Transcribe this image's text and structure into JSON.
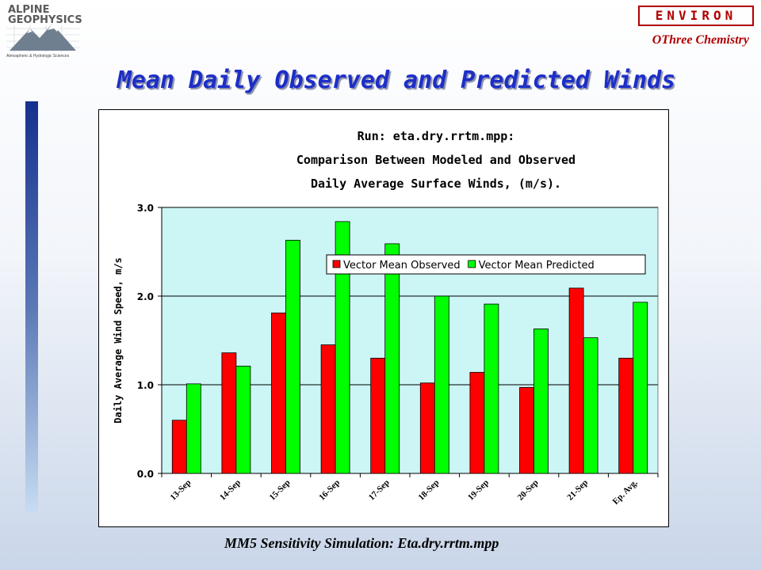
{
  "header": {
    "logo_line1": "ALPINE",
    "logo_line2": "GEOPHYSICS",
    "logo_tagline": "Atmospheric & Hydrologic Sciences",
    "environ_label": "ENVIRON",
    "subtitle": "OThree Chemistry",
    "title": "Mean Daily Observed and Predicted Winds"
  },
  "footer": {
    "caption": "MM5 Sensitivity Simulation:  Eta.dry.rrtm.mpp"
  },
  "colors": {
    "title": "#1d2ec8",
    "observed": "#ff0000",
    "predicted": "#00ff00",
    "plot_bg": "#ccf5f5",
    "accent": "#b00000"
  },
  "chart_data": {
    "type": "bar",
    "title_lines": [
      "Run: eta.dry.rrtm.mpp:",
      "Comparison Between Modeled and Observed",
      "Daily Average Surface Winds, (m/s)."
    ],
    "xlabel": "",
    "ylabel": "Daily Average Wind Speed, m/s",
    "ylim": [
      0,
      3
    ],
    "yticks": [
      "0.0",
      "1.0",
      "2.0",
      "3.0"
    ],
    "grid": true,
    "legend_position": "upper-right",
    "categories": [
      "13-Sep",
      "14-Sep",
      "15-Sep",
      "16-Sep",
      "17-Sep",
      "18-Sep",
      "19-Sep",
      "20-Sep",
      "21-Sep",
      "Ep. Avg."
    ],
    "series": [
      {
        "name": "Vector Mean Observed",
        "color": "#ff0000",
        "values": [
          0.6,
          1.36,
          1.81,
          1.45,
          1.3,
          1.02,
          1.14,
          0.97,
          2.09,
          1.3
        ]
      },
      {
        "name": "Vector Mean Predicted",
        "color": "#00ff00",
        "values": [
          1.01,
          1.21,
          2.63,
          2.84,
          2.59,
          2.0,
          1.91,
          1.63,
          1.53,
          1.93
        ]
      }
    ]
  }
}
